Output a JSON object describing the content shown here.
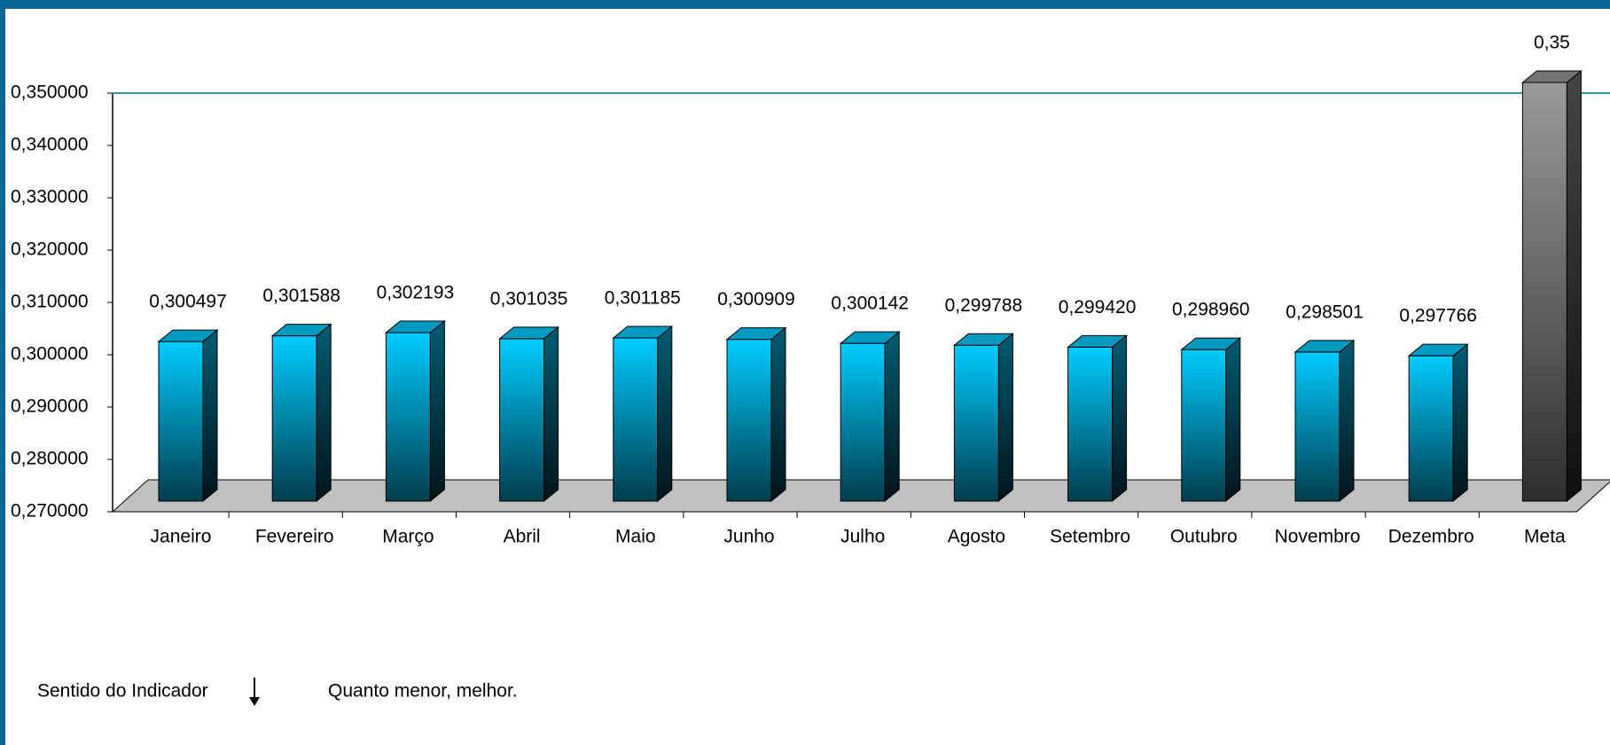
{
  "chart_data": {
    "type": "bar3d",
    "categories": [
      "Janeiro",
      "Fevereiro",
      "Março",
      "Abril",
      "Maio",
      "Junho",
      "Julho",
      "Agosto",
      "Setembro",
      "Outubro",
      "Novembro",
      "Dezembro",
      "Meta"
    ],
    "values": [
      0.300497,
      0.301588,
      0.302193,
      0.301035,
      0.301185,
      0.300909,
      0.300142,
      0.299788,
      0.29942,
      0.29896,
      0.298501,
      0.297766,
      0.35
    ],
    "value_labels": [
      "0,300497",
      "0,301588",
      "0,302193",
      "0,301035",
      "0,301185",
      "0,300909",
      "0,300142",
      "0,299788",
      "0,299420",
      "0,298960",
      "0,298501",
      "0,297766",
      "0,35"
    ],
    "colors": [
      "#00ccff",
      "#00ccff",
      "#00ccff",
      "#00ccff",
      "#00ccff",
      "#00ccff",
      "#00ccff",
      "#00ccff",
      "#00ccff",
      "#00ccff",
      "#00ccff",
      "#00ccff",
      "#9a9a9a"
    ],
    "ylim": [
      0.27,
      0.35
    ],
    "yticks": [
      {
        "value": 0.27,
        "label": "0,270000"
      },
      {
        "value": 0.28,
        "label": "0,280000"
      },
      {
        "value": 0.29,
        "label": "0,290000"
      },
      {
        "value": 0.3,
        "label": "0,300000"
      },
      {
        "value": 0.31,
        "label": "0,310000"
      },
      {
        "value": 0.32,
        "label": "0,320000"
      },
      {
        "value": 0.33,
        "label": "0,330000"
      },
      {
        "value": 0.34,
        "label": "0,340000"
      },
      {
        "value": 0.35,
        "label": "0,350000"
      }
    ],
    "grid_color": "#2a9a9a",
    "indicator_direction": {
      "label": "Sentido do Indicador",
      "text": "Quanto menor, melhor."
    }
  }
}
